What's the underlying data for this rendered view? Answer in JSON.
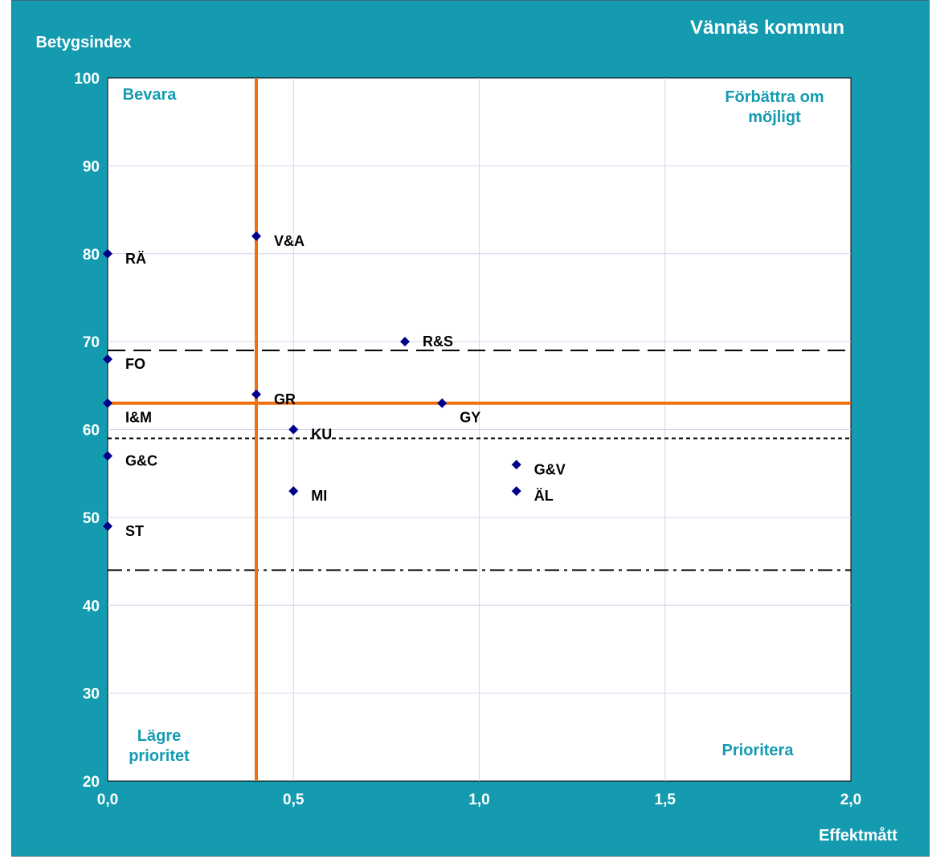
{
  "chart_data": {
    "type": "scatter",
    "title": "Vännäs kommun",
    "xlabel": "Effektmått",
    "ylabel": "Betygsindex",
    "xlim": [
      0,
      2
    ],
    "ylim": [
      20,
      100
    ],
    "x_ticks": [
      "0,0",
      "0,5",
      "1,0",
      "1,5",
      "2,0"
    ],
    "y_ticks": [
      "20",
      "30",
      "40",
      "50",
      "60",
      "70",
      "80",
      "90",
      "100"
    ],
    "grid": true,
    "marker_color": "#00008b",
    "points": [
      {
        "label": "RÄ",
        "x": 0.0,
        "y": 80
      },
      {
        "label": "FO",
        "x": 0.0,
        "y": 68
      },
      {
        "label": "I&M",
        "x": 0.0,
        "y": 63
      },
      {
        "label": "G&C",
        "x": 0.0,
        "y": 57
      },
      {
        "label": "ST",
        "x": 0.0,
        "y": 49
      },
      {
        "label": "V&A",
        "x": 0.4,
        "y": 82
      },
      {
        "label": "GR",
        "x": 0.4,
        "y": 64
      },
      {
        "label": "KU",
        "x": 0.5,
        "y": 60
      },
      {
        "label": "MI",
        "x": 0.5,
        "y": 53
      },
      {
        "label": "R&S",
        "x": 0.8,
        "y": 70
      },
      {
        "label": "GY",
        "x": 0.9,
        "y": 63
      },
      {
        "label": "G&V",
        "x": 1.1,
        "y": 56
      },
      {
        "label": "ÄL",
        "x": 1.1,
        "y": 53
      }
    ],
    "reference_lines": {
      "vertical_orange_x": 0.4,
      "horizontal_orange_y": 63,
      "long_dash_y": 69,
      "short_dash_y": 59,
      "dash_dot_y": 44,
      "orange_color": "#f07010"
    },
    "quadrant_labels": {
      "top_left": [
        "Bevara"
      ],
      "top_right": [
        "Förbättra om",
        "möjligt"
      ],
      "bottom_left": [
        "Lägre",
        "prioritet"
      ],
      "bottom_right": [
        "Prioritera"
      ]
    }
  }
}
